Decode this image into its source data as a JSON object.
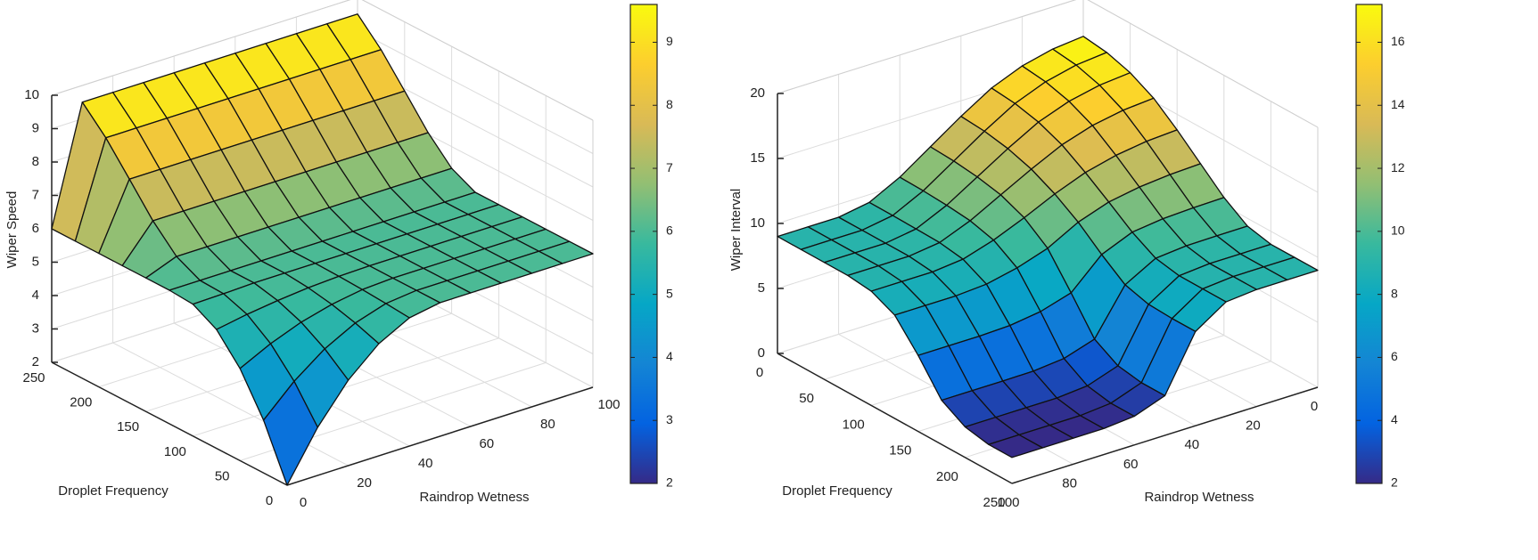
{
  "chart_data": [
    {
      "type": "surface",
      "z_label": "Wiper Speed",
      "y_label": "Droplet Frequency",
      "x_label": "Raindrop Wetness",
      "x": [
        0,
        10,
        20,
        30,
        40,
        50,
        60,
        70,
        80,
        90,
        100
      ],
      "y": [
        0,
        25,
        50,
        75,
        100,
        125,
        150,
        175,
        200,
        225,
        250
      ],
      "z": [
        [
          2,
          3.44,
          4.56,
          5.36,
          5.84,
          6,
          6,
          6,
          6,
          6,
          6
        ],
        [
          3.58,
          4.45,
          5.13,
          5.61,
          5.9,
          6,
          6,
          6,
          6,
          6,
          6
        ],
        [
          4.76,
          5.21,
          5.56,
          5.8,
          5.95,
          6,
          6,
          6,
          6,
          6,
          6
        ],
        [
          5.56,
          5.72,
          5.84,
          5.93,
          5.98,
          6,
          6,
          6,
          6,
          6,
          6
        ],
        [
          5.95,
          5.97,
          6,
          6,
          6,
          6,
          6,
          6,
          6,
          6,
          6
        ],
        [
          6,
          6,
          6,
          6,
          6,
          6,
          6,
          6,
          6,
          6,
          6
        ],
        [
          6,
          6.35,
          6.35,
          6.35,
          6.35,
          6.35,
          6.35,
          6.35,
          6.35,
          6.35,
          6.35
        ],
        [
          6,
          7.05,
          7.05,
          7.05,
          7.05,
          7.05,
          7.05,
          7.05,
          7.05,
          7.05,
          7.05
        ],
        [
          6,
          7.93,
          7.93,
          7.93,
          7.93,
          7.93,
          7.93,
          7.93,
          7.93,
          7.93,
          7.93
        ],
        [
          6,
          8.8,
          8.8,
          8.8,
          8.8,
          8.8,
          8.8,
          8.8,
          8.8,
          8.8,
          8.8
        ],
        [
          6,
          9.5,
          9.5,
          9.5,
          9.5,
          9.5,
          9.5,
          9.5,
          9.5,
          9.5,
          9.5
        ]
      ],
      "xlim": [
        0,
        100
      ],
      "ylim": [
        0,
        250
      ],
      "zlim": [
        2,
        10
      ],
      "xticks": [
        0,
        20,
        40,
        60,
        80,
        100
      ],
      "yticks": [
        0,
        50,
        100,
        150,
        200,
        250
      ],
      "zticks": [
        2,
        3,
        4,
        5,
        6,
        7,
        8,
        9,
        10
      ],
      "clim": [
        2,
        9.6
      ],
      "cticks": [
        2,
        3,
        4,
        5,
        6,
        7,
        8,
        9
      ],
      "colormap": [
        "#352a87",
        "#0363e1",
        "#1485d4",
        "#06a7c6",
        "#38b99e",
        "#92bf73",
        "#d9ba56",
        "#fcce2e",
        "#f9fb0e"
      ],
      "edge_color": "#111111",
      "grid": true
    },
    {
      "type": "surface",
      "z_label": "Wiper Interval",
      "y_label": "Droplet Frequency",
      "x_label": "Raindrop Wetness",
      "x": [
        0,
        10,
        20,
        30,
        40,
        50,
        60,
        70,
        80,
        90,
        100
      ],
      "y": [
        0,
        25,
        50,
        75,
        100,
        125,
        150,
        175,
        200,
        225,
        250
      ],
      "z": [
        [
          17,
          16.76,
          16.2,
          15.24,
          13.8,
          12.2,
          10.6,
          9.4,
          9,
          9,
          9
        ],
        [
          16.76,
          16.53,
          15.98,
          15.05,
          13.66,
          12.1,
          10.55,
          9.39,
          9,
          9,
          9
        ],
        [
          16.2,
          15.98,
          15.48,
          14.62,
          13.32,
          11.88,
          10.44,
          9.36,
          9,
          9,
          9
        ],
        [
          15.24,
          15.05,
          14.62,
          13.87,
          12.74,
          11.5,
          10.25,
          9.31,
          9,
          9,
          9
        ],
        [
          13.8,
          13.66,
          13.32,
          12.74,
          11.83,
          10.74,
          9.76,
          9.03,
          8.79,
          8.79,
          8.79
        ],
        [
          12.2,
          12.1,
          11.88,
          11.47,
          10.66,
          9.39,
          8.62,
          8.11,
          7.95,
          7.95,
          7.95
        ],
        [
          10.6,
          10.55,
          10.44,
          10.15,
          9.17,
          6.96,
          6.26,
          5.93,
          5.85,
          5.85,
          5.85
        ],
        [
          9.4,
          9.39,
          9.36,
          9.14,
          7.84,
          4.4,
          3.65,
          3.42,
          3.4,
          3.4,
          3.4
        ],
        [
          9,
          9,
          9,
          8.8,
          7.34,
          3.35,
          2.55,
          2.35,
          2.35,
          2.35,
          2.35
        ],
        [
          9,
          9,
          9,
          8.79,
          7.25,
          3.05,
          2.21,
          2,
          2,
          2,
          2
        ],
        [
          9,
          9,
          9,
          8.79,
          7.25,
          3.05,
          2.21,
          2,
          2,
          2,
          2
        ]
      ],
      "xlim": [
        0,
        100
      ],
      "ylim": [
        0,
        250
      ],
      "zlim": [
        0,
        20
      ],
      "xticks": [
        0,
        20,
        40,
        60,
        80,
        100
      ],
      "yticks": [
        0,
        50,
        100,
        150,
        200,
        250
      ],
      "zticks": [
        0,
        5,
        10,
        15,
        20
      ],
      "clim": [
        2,
        17.2
      ],
      "cticks": [
        2,
        4,
        6,
        8,
        10,
        12,
        14,
        16
      ],
      "colormap": [
        "#352a87",
        "#0363e1",
        "#1485d4",
        "#06a7c6",
        "#38b99e",
        "#92bf73",
        "#d9ba56",
        "#fcce2e",
        "#f9fb0e"
      ],
      "edge_color": "#111111",
      "grid": true
    }
  ]
}
